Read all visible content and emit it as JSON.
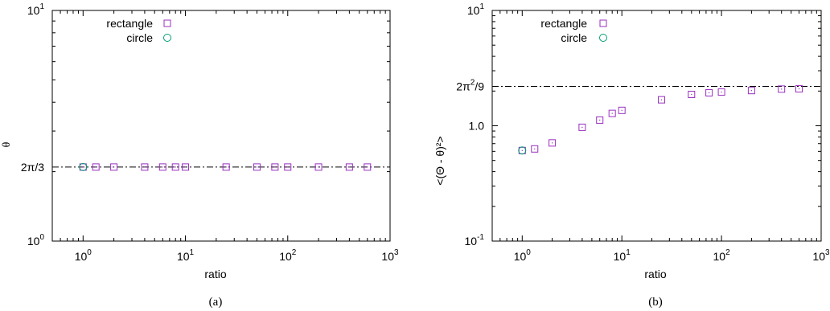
{
  "chart_data": [
    {
      "type": "scatter",
      "panel_label": "(a)",
      "xlabel": "ratio",
      "ylabel": "θ",
      "x_scale": "log",
      "y_scale": "log",
      "xlim": [
        0.5,
        1000
      ],
      "ylim": [
        1,
        10
      ],
      "x_ticks": [
        {
          "value": 1,
          "base": "10",
          "exp": "0"
        },
        {
          "value": 10,
          "base": "10",
          "exp": "1"
        },
        {
          "value": 100,
          "base": "10",
          "exp": "2"
        },
        {
          "value": 1000,
          "base": "10",
          "exp": "3"
        }
      ],
      "y_ticks": [
        {
          "value": 1,
          "base": "10",
          "exp": "0"
        },
        {
          "value": 10,
          "base": "10",
          "exp": "1"
        }
      ],
      "reference_line": {
        "value": 2.094,
        "label_parts": [
          "2π/3"
        ],
        "style": "dash-dot"
      },
      "legend_position": "top-left",
      "series": [
        {
          "name": "rectangle",
          "marker": "square",
          "color": "#9a2fc1",
          "x": [
            1,
            1.333,
            2,
            4,
            6,
            8,
            10,
            25,
            50,
            75,
            100,
            200,
            400,
            600
          ],
          "y": [
            2.094,
            2.094,
            2.094,
            2.094,
            2.094,
            2.094,
            2.094,
            2.094,
            2.094,
            2.094,
            2.094,
            2.094,
            2.094,
            2.094
          ]
        },
        {
          "name": "circle",
          "marker": "circle",
          "color": "#009e73",
          "x": [
            1
          ],
          "y": [
            2.094
          ]
        }
      ]
    },
    {
      "type": "scatter",
      "panel_label": "(b)",
      "xlabel": "ratio",
      "ylabel": "<(Θ - θ)²>",
      "x_scale": "log",
      "y_scale": "log",
      "xlim": [
        0.5,
        1000
      ],
      "ylim": [
        0.1,
        10
      ],
      "x_ticks": [
        {
          "value": 1,
          "base": "10",
          "exp": "0"
        },
        {
          "value": 10,
          "base": "10",
          "exp": "1"
        },
        {
          "value": 100,
          "base": "10",
          "exp": "2"
        },
        {
          "value": 1000,
          "base": "10",
          "exp": "3"
        }
      ],
      "y_ticks": [
        {
          "value": 0.1,
          "base": "10",
          "exp": "-1"
        },
        {
          "value": 1,
          "base": "1.0",
          "exp": ""
        },
        {
          "value": 10,
          "base": "10",
          "exp": "1"
        }
      ],
      "reference_line": {
        "value": 2.193,
        "label_parts": [
          "2π",
          "2",
          "/9"
        ],
        "style": "dash-dot"
      },
      "legend_position": "top-left",
      "series": [
        {
          "name": "rectangle",
          "marker": "square",
          "color": "#9a2fc1",
          "x": [
            1,
            1.333,
            2,
            4,
            6,
            8,
            10,
            25,
            50,
            75,
            100,
            200,
            400,
            600
          ],
          "y": [
            0.61,
            0.63,
            0.71,
            0.97,
            1.12,
            1.28,
            1.36,
            1.68,
            1.87,
            1.93,
            1.96,
            2.02,
            2.08,
            2.09
          ]
        },
        {
          "name": "circle",
          "marker": "circle",
          "color": "#009e73",
          "x": [
            1
          ],
          "y": [
            0.61
          ]
        }
      ]
    }
  ]
}
